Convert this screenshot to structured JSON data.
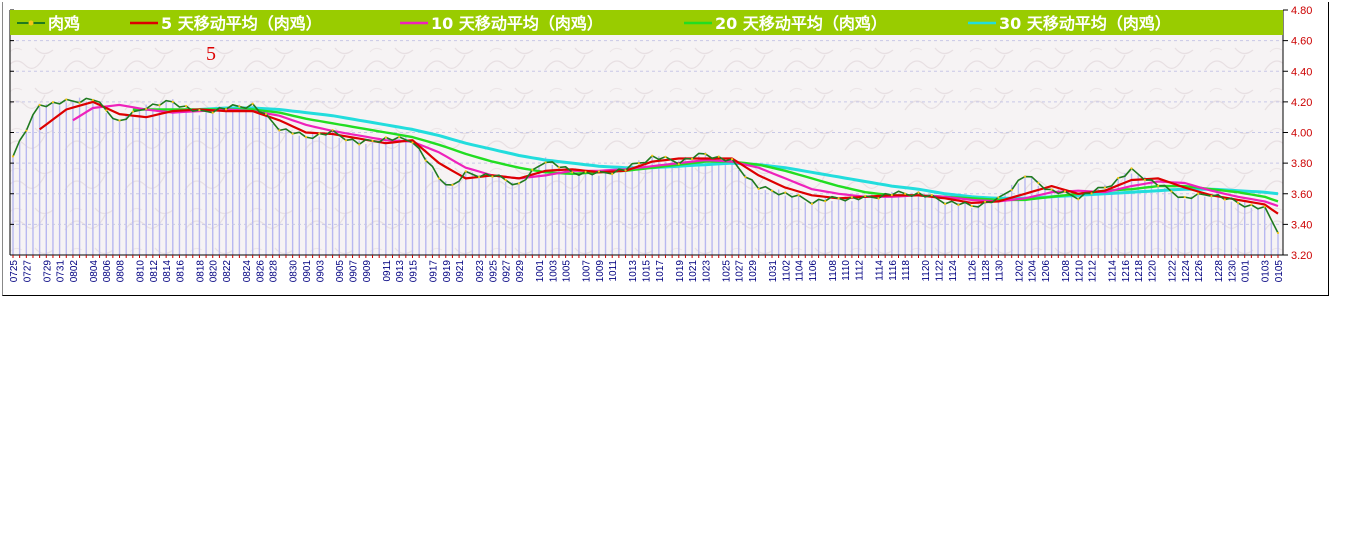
{
  "chart_data": {
    "type": "line",
    "legend": [
      {
        "label": "肉鸡",
        "color": "#1f7a1f"
      },
      {
        "label": "5 天移动平均（肉鸡）",
        "color": "#dd0000"
      },
      {
        "label": "10 天移动平均（肉鸡）",
        "color": "#ee22bb"
      },
      {
        "label": "20 天移动平均（肉鸡）",
        "color": "#22dd22"
      },
      {
        "label": "30 天移动平均（肉鸡）",
        "color": "#22dddd"
      }
    ],
    "legend_bg": "#99cc00",
    "annotation": "5",
    "ylim": [
      3.2,
      4.8
    ],
    "yticks": [
      "4.80",
      "4.60",
      "4.40",
      "4.20",
      "4.00",
      "3.80",
      "3.60",
      "3.40",
      "3.20"
    ],
    "xticks": [
      "0725",
      "0727",
      "0729",
      "0731",
      "0802",
      "0804",
      "0806",
      "0808",
      "0810",
      "0812",
      "0814",
      "0816",
      "0818",
      "0820",
      "0822",
      "0824",
      "0826",
      "0828",
      "0830",
      "0901",
      "0903",
      "0905",
      "0907",
      "0909",
      "0911",
      "0913",
      "0915",
      "0917",
      "0919",
      "0921",
      "0923",
      "0925",
      "0927",
      "0929",
      "1001",
      "1003",
      "1005",
      "1007",
      "1009",
      "1011",
      "1013",
      "1015",
      "1017",
      "1019",
      "1021",
      "1023",
      "1025",
      "1027",
      "1029",
      "1031",
      "1102",
      "1104",
      "1106",
      "1108",
      "1110",
      "1112",
      "1114",
      "1116",
      "1118",
      "1120",
      "1122",
      "1124",
      "1126",
      "1128",
      "1130",
      "1202",
      "1204",
      "1206",
      "1208",
      "1210",
      "1212",
      "1214",
      "1216",
      "1218",
      "1220",
      "1222",
      "1224",
      "1226",
      "1228",
      "1230",
      "0101",
      "0103",
      "0105"
    ],
    "keypoints": {
      "price": [
        [
          0,
          3.86
        ],
        [
          4,
          4.18
        ],
        [
          8,
          4.2
        ],
        [
          12,
          4.22
        ],
        [
          16,
          4.07
        ],
        [
          20,
          4.17
        ],
        [
          24,
          4.2
        ],
        [
          28,
          4.13
        ],
        [
          32,
          4.16
        ],
        [
          36,
          4.18
        ],
        [
          40,
          4.03
        ],
        [
          44,
          3.97
        ],
        [
          48,
          4.0
        ],
        [
          52,
          3.93
        ],
        [
          56,
          3.96
        ],
        [
          60,
          3.95
        ],
        [
          64,
          3.7
        ],
        [
          66,
          3.65
        ],
        [
          68,
          3.73
        ],
        [
          72,
          3.72
        ],
        [
          76,
          3.66
        ],
        [
          80,
          3.82
        ],
        [
          84,
          3.74
        ],
        [
          88,
          3.73
        ],
        [
          92,
          3.76
        ],
        [
          96,
          3.84
        ],
        [
          100,
          3.81
        ],
        [
          104,
          3.86
        ],
        [
          108,
          3.81
        ],
        [
          112,
          3.64
        ],
        [
          116,
          3.6
        ],
        [
          120,
          3.55
        ],
        [
          124,
          3.57
        ],
        [
          128,
          3.57
        ],
        [
          132,
          3.6
        ],
        [
          136,
          3.6
        ],
        [
          140,
          3.55
        ],
        [
          144,
          3.52
        ],
        [
          148,
          3.56
        ],
        [
          152,
          3.72
        ],
        [
          156,
          3.62
        ],
        [
          160,
          3.58
        ],
        [
          164,
          3.64
        ],
        [
          168,
          3.75
        ],
        [
          172,
          3.66
        ],
        [
          176,
          3.57
        ],
        [
          180,
          3.6
        ],
        [
          184,
          3.54
        ],
        [
          188,
          3.5
        ],
        [
          190,
          3.36
        ]
      ],
      "ma5": [
        [
          4,
          4.02
        ],
        [
          8,
          4.15
        ],
        [
          12,
          4.2
        ],
        [
          16,
          4.12
        ],
        [
          20,
          4.1
        ],
        [
          24,
          4.14
        ],
        [
          28,
          4.15
        ],
        [
          32,
          4.14
        ],
        [
          36,
          4.14
        ],
        [
          40,
          4.08
        ],
        [
          44,
          4.0
        ],
        [
          48,
          3.99
        ],
        [
          52,
          3.96
        ],
        [
          56,
          3.93
        ],
        [
          60,
          3.95
        ],
        [
          64,
          3.8
        ],
        [
          68,
          3.7
        ],
        [
          72,
          3.72
        ],
        [
          76,
          3.7
        ],
        [
          80,
          3.75
        ],
        [
          84,
          3.76
        ],
        [
          88,
          3.74
        ],
        [
          92,
          3.75
        ],
        [
          96,
          3.81
        ],
        [
          100,
          3.83
        ],
        [
          104,
          3.83
        ],
        [
          108,
          3.83
        ],
        [
          112,
          3.72
        ],
        [
          116,
          3.64
        ],
        [
          120,
          3.59
        ],
        [
          124,
          3.57
        ],
        [
          128,
          3.58
        ],
        [
          132,
          3.59
        ],
        [
          136,
          3.59
        ],
        [
          140,
          3.57
        ],
        [
          144,
          3.54
        ],
        [
          148,
          3.55
        ],
        [
          152,
          3.6
        ],
        [
          156,
          3.65
        ],
        [
          160,
          3.6
        ],
        [
          164,
          3.62
        ],
        [
          168,
          3.69
        ],
        [
          172,
          3.7
        ],
        [
          176,
          3.64
        ],
        [
          180,
          3.59
        ],
        [
          184,
          3.56
        ],
        [
          188,
          3.53
        ],
        [
          190,
          3.47
        ]
      ],
      "ma10": [
        [
          9,
          4.08
        ],
        [
          12,
          4.16
        ],
        [
          16,
          4.18
        ],
        [
          20,
          4.15
        ],
        [
          24,
          4.13
        ],
        [
          28,
          4.14
        ],
        [
          32,
          4.15
        ],
        [
          36,
          4.14
        ],
        [
          40,
          4.11
        ],
        [
          44,
          4.05
        ],
        [
          48,
          4.01
        ],
        [
          52,
          3.98
        ],
        [
          56,
          3.95
        ],
        [
          60,
          3.94
        ],
        [
          64,
          3.87
        ],
        [
          68,
          3.77
        ],
        [
          72,
          3.72
        ],
        [
          76,
          3.7
        ],
        [
          80,
          3.72
        ],
        [
          84,
          3.75
        ],
        [
          88,
          3.75
        ],
        [
          92,
          3.76
        ],
        [
          96,
          3.78
        ],
        [
          100,
          3.8
        ],
        [
          104,
          3.82
        ],
        [
          108,
          3.81
        ],
        [
          112,
          3.77
        ],
        [
          116,
          3.7
        ],
        [
          120,
          3.63
        ],
        [
          124,
          3.6
        ],
        [
          128,
          3.58
        ],
        [
          132,
          3.58
        ],
        [
          136,
          3.59
        ],
        [
          140,
          3.58
        ],
        [
          144,
          3.56
        ],
        [
          148,
          3.55
        ],
        [
          152,
          3.57
        ],
        [
          156,
          3.61
        ],
        [
          160,
          3.62
        ],
        [
          164,
          3.61
        ],
        [
          168,
          3.65
        ],
        [
          172,
          3.68
        ],
        [
          176,
          3.67
        ],
        [
          180,
          3.62
        ],
        [
          184,
          3.58
        ],
        [
          188,
          3.55
        ],
        [
          190,
          3.52
        ]
      ],
      "ma20": [
        [
          18,
          4.15
        ],
        [
          24,
          4.15
        ],
        [
          30,
          4.15
        ],
        [
          36,
          4.15
        ],
        [
          40,
          4.13
        ],
        [
          44,
          4.09
        ],
        [
          48,
          4.06
        ],
        [
          52,
          4.03
        ],
        [
          56,
          4.0
        ],
        [
          60,
          3.97
        ],
        [
          64,
          3.92
        ],
        [
          68,
          3.86
        ],
        [
          72,
          3.81
        ],
        [
          76,
          3.77
        ],
        [
          80,
          3.74
        ],
        [
          84,
          3.73
        ],
        [
          88,
          3.74
        ],
        [
          92,
          3.75
        ],
        [
          96,
          3.77
        ],
        [
          100,
          3.79
        ],
        [
          104,
          3.81
        ],
        [
          108,
          3.81
        ],
        [
          112,
          3.79
        ],
        [
          116,
          3.75
        ],
        [
          120,
          3.7
        ],
        [
          124,
          3.65
        ],
        [
          128,
          3.61
        ],
        [
          132,
          3.59
        ],
        [
          136,
          3.59
        ],
        [
          140,
          3.58
        ],
        [
          144,
          3.57
        ],
        [
          148,
          3.56
        ],
        [
          152,
          3.56
        ],
        [
          156,
          3.58
        ],
        [
          160,
          3.6
        ],
        [
          164,
          3.62
        ],
        [
          168,
          3.63
        ],
        [
          172,
          3.65
        ],
        [
          176,
          3.65
        ],
        [
          180,
          3.63
        ],
        [
          184,
          3.61
        ],
        [
          188,
          3.58
        ],
        [
          190,
          3.55
        ]
      ],
      "ma30": [
        [
          28,
          4.15
        ],
        [
          32,
          4.16
        ],
        [
          36,
          4.16
        ],
        [
          40,
          4.15
        ],
        [
          44,
          4.13
        ],
        [
          48,
          4.11
        ],
        [
          52,
          4.08
        ],
        [
          56,
          4.05
        ],
        [
          60,
          4.02
        ],
        [
          64,
          3.98
        ],
        [
          68,
          3.93
        ],
        [
          72,
          3.89
        ],
        [
          76,
          3.85
        ],
        [
          80,
          3.82
        ],
        [
          84,
          3.8
        ],
        [
          88,
          3.78
        ],
        [
          92,
          3.77
        ],
        [
          96,
          3.77
        ],
        [
          100,
          3.78
        ],
        [
          104,
          3.79
        ],
        [
          108,
          3.8
        ],
        [
          112,
          3.79
        ],
        [
          116,
          3.77
        ],
        [
          120,
          3.74
        ],
        [
          124,
          3.71
        ],
        [
          128,
          3.68
        ],
        [
          132,
          3.65
        ],
        [
          136,
          3.63
        ],
        [
          140,
          3.6
        ],
        [
          144,
          3.58
        ],
        [
          148,
          3.57
        ],
        [
          152,
          3.57
        ],
        [
          156,
          3.58
        ],
        [
          160,
          3.59
        ],
        [
          164,
          3.6
        ],
        [
          168,
          3.61
        ],
        [
          172,
          3.62
        ],
        [
          176,
          3.63
        ],
        [
          180,
          3.63
        ],
        [
          184,
          3.62
        ],
        [
          188,
          3.61
        ],
        [
          190,
          3.6
        ]
      ]
    }
  }
}
